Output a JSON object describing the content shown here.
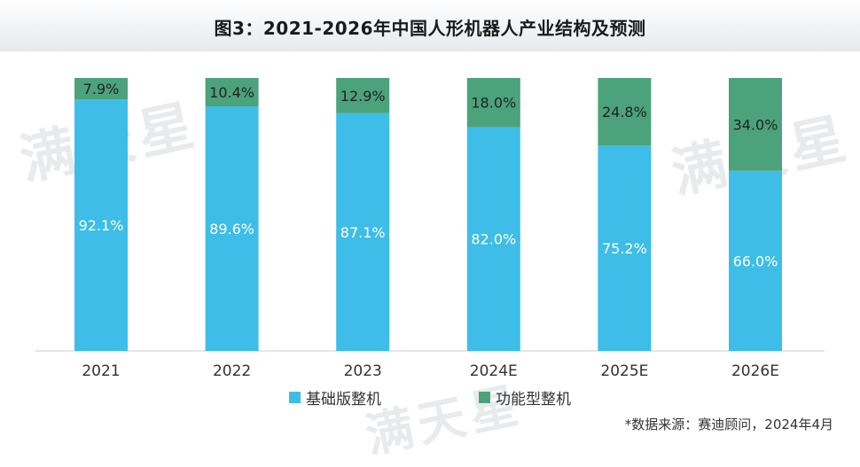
{
  "title": "图3：2021-2026年中国人形机器人产业结构及预测",
  "source": "*数据来源：赛迪顾问，2024年4月",
  "watermark_text": "满天星",
  "colors": {
    "series_0": "#3dbde8",
    "series_1": "#4ca27a"
  },
  "legend": [
    {
      "label": "基础版整机",
      "color": "#3dbde8"
    },
    {
      "label": "功能型整机",
      "color": "#4ca27a"
    }
  ],
  "chart_data": {
    "type": "bar",
    "stacked": true,
    "title": "图3：2021-2026年中国人形机器人产业结构及预测",
    "categories": [
      "2021",
      "2022",
      "2023",
      "2024E",
      "2025E",
      "2026E"
    ],
    "series": [
      {
        "name": "基础版整机",
        "values": [
          92.1,
          89.6,
          87.1,
          82.0,
          75.2,
          66.0
        ],
        "labels": [
          "92.1%",
          "89.6%",
          "87.1%",
          "82.0%",
          "75.2%",
          "66.0%"
        ]
      },
      {
        "name": "功能型整机",
        "values": [
          7.9,
          10.4,
          12.9,
          18.0,
          24.8,
          34.0
        ],
        "labels": [
          "7.9%",
          "10.4%",
          "12.9%",
          "18.0%",
          "24.8%",
          "34.0%"
        ]
      }
    ],
    "ylim": [
      0,
      100
    ],
    "grid": false,
    "legend_position": "bottom"
  }
}
